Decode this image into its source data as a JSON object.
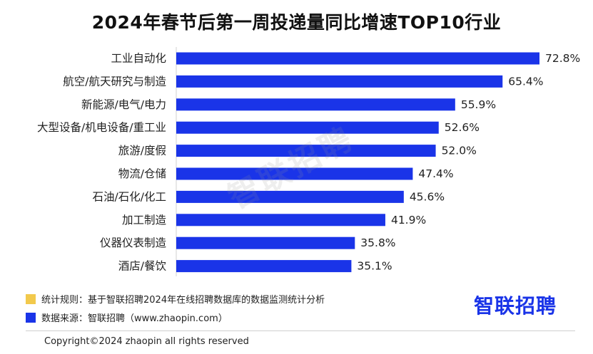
{
  "title": "2024年春节后第一周投递量同比增速TOP10行业",
  "watermark": "智联招聘",
  "colors": {
    "bar": "#1a34e8",
    "legend_rule": "#f2c94c",
    "legend_source": "#1a34e8",
    "logo": "#1a34e8"
  },
  "legend": {
    "rule": "统计规则：基于智联招聘2024年在线招聘数据库的数据监测统计分析",
    "source": "数据来源：智联招聘（www.zhaopin.com）"
  },
  "logo_text": "智联招聘",
  "copyright": "Copyright©2024 zhaopin all rights reserved",
  "chart_data": {
    "type": "bar",
    "orientation": "horizontal",
    "title": "2024年春节后第一周投递量同比增速TOP10行业",
    "categories": [
      "工业自动化",
      "航空/航天研究与制造",
      "新能源/电气/电力",
      "大型设备/机电设备/重工业",
      "旅游/度假",
      "物流/仓储",
      "石油/石化/化工",
      "加工制造",
      "仪器仪表制造",
      "酒店/餐饮"
    ],
    "values": [
      72.8,
      65.4,
      55.9,
      52.6,
      52.0,
      47.4,
      45.6,
      41.9,
      35.8,
      35.1
    ],
    "value_labels": [
      "72.8%",
      "65.4%",
      "55.9%",
      "52.6%",
      "52.0%",
      "47.4%",
      "45.6%",
      "41.9%",
      "35.8%",
      "35.1%"
    ],
    "xlim": [
      0,
      72.8
    ],
    "grid": false,
    "legend": "none"
  }
}
